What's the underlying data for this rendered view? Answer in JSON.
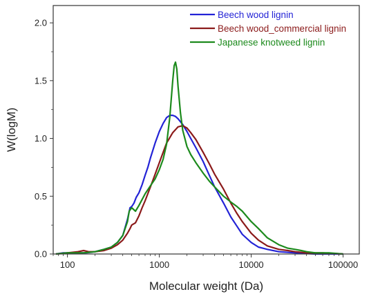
{
  "chart_data": {
    "type": "line",
    "xlabel": "Molecular weight (Da)",
    "ylabel": "W(logM)",
    "xscale": "log",
    "xlim": [
      70,
      150000
    ],
    "ylim": [
      0,
      2.15
    ],
    "xticks": [
      100,
      1000,
      10000,
      100000
    ],
    "xtick_labels": [
      "100",
      "1000",
      "10000",
      "100000"
    ],
    "yticks": [
      0.0,
      0.5,
      1.0,
      1.5,
      2.0
    ],
    "ytick_labels": [
      "0.0",
      "0.5",
      "1.0",
      "1.5",
      "2.0"
    ],
    "grid": false,
    "legend_position": "top-right",
    "series": [
      {
        "name": "Beech wood lignin",
        "color": "#2323d6",
        "points": [
          [
            75,
            0.0
          ],
          [
            90,
            0.01
          ],
          [
            110,
            0.01
          ],
          [
            130,
            0.01
          ],
          [
            160,
            0.01
          ],
          [
            200,
            0.02
          ],
          [
            250,
            0.04
          ],
          [
            300,
            0.06
          ],
          [
            350,
            0.1
          ],
          [
            400,
            0.16
          ],
          [
            450,
            0.3
          ],
          [
            480,
            0.4
          ],
          [
            500,
            0.41
          ],
          [
            530,
            0.44
          ],
          [
            560,
            0.49
          ],
          [
            600,
            0.53
          ],
          [
            650,
            0.6
          ],
          [
            700,
            0.68
          ],
          [
            750,
            0.75
          ],
          [
            800,
            0.83
          ],
          [
            900,
            0.96
          ],
          [
            1000,
            1.06
          ],
          [
            1100,
            1.13
          ],
          [
            1200,
            1.18
          ],
          [
            1300,
            1.2
          ],
          [
            1400,
            1.2
          ],
          [
            1500,
            1.19
          ],
          [
            1600,
            1.17
          ],
          [
            1800,
            1.12
          ],
          [
            2000,
            1.06
          ],
          [
            2200,
            1.0
          ],
          [
            2500,
            0.92
          ],
          [
            3000,
            0.8
          ],
          [
            3500,
            0.68
          ],
          [
            4000,
            0.58
          ],
          [
            5000,
            0.44
          ],
          [
            6000,
            0.32
          ],
          [
            7000,
            0.24
          ],
          [
            8000,
            0.17
          ],
          [
            10000,
            0.1
          ],
          [
            12000,
            0.06
          ],
          [
            15000,
            0.04
          ],
          [
            20000,
            0.02
          ],
          [
            30000,
            0.01
          ],
          [
            50000,
            0.0
          ],
          [
            100000,
            0.0
          ]
        ]
      },
      {
        "name": "Beech wood_commercial lignin",
        "color": "#8b1a1a",
        "points": [
          [
            75,
            0.0
          ],
          [
            100,
            0.01
          ],
          [
            130,
            0.02
          ],
          [
            150,
            0.03
          ],
          [
            170,
            0.02
          ],
          [
            200,
            0.02
          ],
          [
            250,
            0.03
          ],
          [
            300,
            0.05
          ],
          [
            350,
            0.08
          ],
          [
            400,
            0.12
          ],
          [
            450,
            0.18
          ],
          [
            480,
            0.22
          ],
          [
            500,
            0.25
          ],
          [
            550,
            0.27
          ],
          [
            600,
            0.33
          ],
          [
            650,
            0.4
          ],
          [
            700,
            0.46
          ],
          [
            800,
            0.58
          ],
          [
            900,
            0.69
          ],
          [
            1000,
            0.79
          ],
          [
            1100,
            0.88
          ],
          [
            1200,
            0.96
          ],
          [
            1400,
            1.05
          ],
          [
            1600,
            1.1
          ],
          [
            1800,
            1.11
          ],
          [
            2000,
            1.09
          ],
          [
            2200,
            1.05
          ],
          [
            2500,
            0.99
          ],
          [
            3000,
            0.88
          ],
          [
            3500,
            0.78
          ],
          [
            4000,
            0.69
          ],
          [
            5000,
            0.56
          ],
          [
            6000,
            0.44
          ],
          [
            7000,
            0.35
          ],
          [
            8000,
            0.28
          ],
          [
            10000,
            0.18
          ],
          [
            12000,
            0.12
          ],
          [
            15000,
            0.07
          ],
          [
            20000,
            0.04
          ],
          [
            25000,
            0.03
          ],
          [
            30000,
            0.02
          ],
          [
            40000,
            0.01
          ],
          [
            60000,
            0.01
          ],
          [
            100000,
            0.0
          ]
        ]
      },
      {
        "name": "Japanese knotweed lignin",
        "color": "#1c8a1c",
        "points": [
          [
            75,
            0.0
          ],
          [
            100,
            0.01
          ],
          [
            150,
            0.01
          ],
          [
            200,
            0.02
          ],
          [
            250,
            0.04
          ],
          [
            300,
            0.06
          ],
          [
            350,
            0.1
          ],
          [
            400,
            0.16
          ],
          [
            450,
            0.28
          ],
          [
            470,
            0.37
          ],
          [
            500,
            0.4
          ],
          [
            550,
            0.37
          ],
          [
            600,
            0.42
          ],
          [
            700,
            0.52
          ],
          [
            800,
            0.59
          ],
          [
            900,
            0.65
          ],
          [
            1000,
            0.73
          ],
          [
            1100,
            0.82
          ],
          [
            1200,
            0.95
          ],
          [
            1300,
            1.18
          ],
          [
            1400,
            1.5
          ],
          [
            1450,
            1.63
          ],
          [
            1500,
            1.66
          ],
          [
            1550,
            1.6
          ],
          [
            1600,
            1.45
          ],
          [
            1700,
            1.22
          ],
          [
            1800,
            1.07
          ],
          [
            2000,
            0.93
          ],
          [
            2200,
            0.86
          ],
          [
            2500,
            0.79
          ],
          [
            3000,
            0.7
          ],
          [
            3500,
            0.63
          ],
          [
            4000,
            0.58
          ],
          [
            5000,
            0.5
          ],
          [
            6000,
            0.45
          ],
          [
            7000,
            0.41
          ],
          [
            8000,
            0.37
          ],
          [
            10000,
            0.28
          ],
          [
            12000,
            0.22
          ],
          [
            15000,
            0.14
          ],
          [
            20000,
            0.08
          ],
          [
            25000,
            0.05
          ],
          [
            30000,
            0.04
          ],
          [
            35000,
            0.03
          ],
          [
            40000,
            0.02
          ],
          [
            50000,
            0.01
          ],
          [
            70000,
            0.01
          ],
          [
            100000,
            0.0
          ]
        ]
      }
    ]
  }
}
